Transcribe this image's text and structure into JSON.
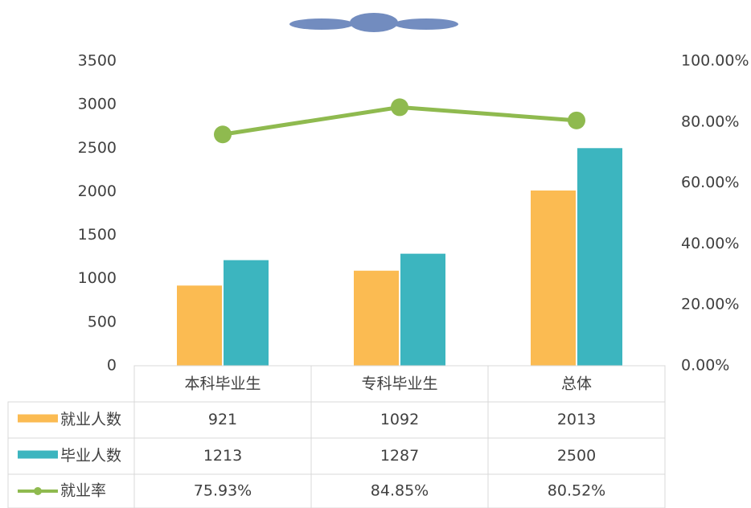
{
  "chart_data": {
    "type": "bar",
    "categories": [
      "本科毕业生",
      "专科毕业生",
      "总体"
    ],
    "series": [
      {
        "name": "就业人数",
        "color": "#fbbb52",
        "values": [
          921,
          1092,
          2013
        ]
      },
      {
        "name": "毕业人数",
        "color": "#3cb5bf",
        "values": [
          1213,
          1287,
          2500
        ]
      },
      {
        "name": "就业率",
        "type": "line",
        "axis": "y2",
        "color": "#8fba4f",
        "values": [
          75.93,
          84.85,
          80.52
        ],
        "value_labels": [
          "75.93%",
          "84.85%",
          "80.52%"
        ]
      }
    ],
    "ylim": [
      0,
      3500
    ],
    "yticks": [
      0,
      500,
      1000,
      1500,
      2000,
      2500,
      3000,
      3500
    ],
    "y2lim": [
      0,
      100
    ],
    "y2ticks": [
      {
        "value": 0,
        "label": "0.00%"
      },
      {
        "value": 20,
        "label": "20.00%"
      },
      {
        "value": 40,
        "label": "40.00%"
      },
      {
        "value": 60,
        "label": "60.00%"
      },
      {
        "value": 80,
        "label": "80.00%"
      },
      {
        "value": 100,
        "label": "100.00%"
      }
    ],
    "data_table": true
  }
}
